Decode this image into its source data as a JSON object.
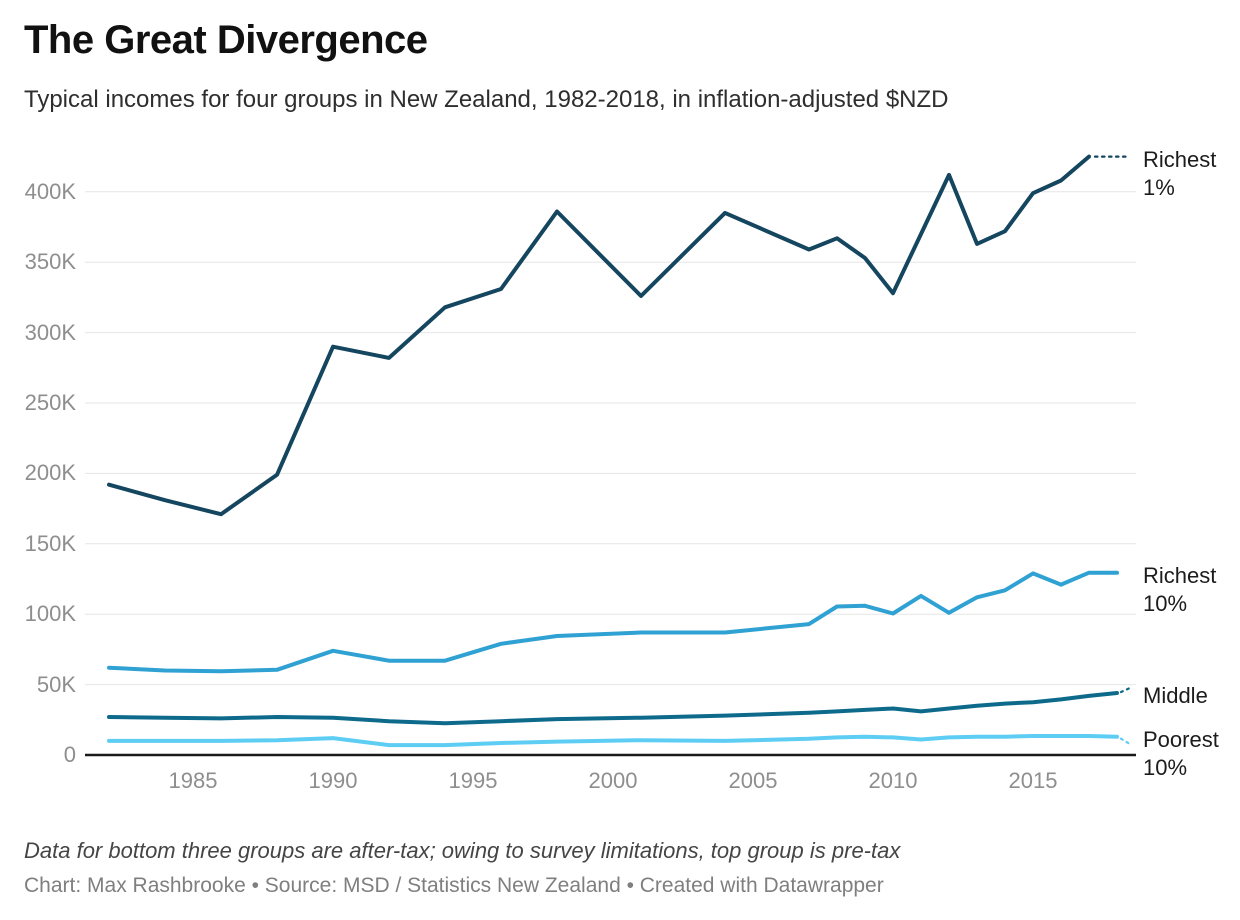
{
  "chart_data": {
    "type": "line",
    "title": "The Great Divergence",
    "subtitle": "Typical incomes for four groups in New Zealand, 1982-2018, in inflation-adjusted $NZD",
    "value_unit": "thousand NZD",
    "x_range": [
      1982,
      2018
    ],
    "ylim": [
      0,
      430
    ],
    "grid": "horizontal",
    "legend_position": "right-edge-labels",
    "yticks": [
      {
        "v": 0,
        "label": "0"
      },
      {
        "v": 50,
        "label": "50K"
      },
      {
        "v": 100,
        "label": "100K"
      },
      {
        "v": 150,
        "label": "150K"
      },
      {
        "v": 200,
        "label": "200K"
      },
      {
        "v": 250,
        "label": "250K"
      },
      {
        "v": 300,
        "label": "300K"
      },
      {
        "v": 350,
        "label": "350K"
      },
      {
        "v": 400,
        "label": "400K"
      }
    ],
    "xticks": [
      "1985",
      "1990",
      "1995",
      "2000",
      "2005",
      "2010",
      "2015"
    ],
    "colors": {
      "axis": "#1a1a1a",
      "grid": "#e6e6e6",
      "ticks": "#8e8e8e",
      "label_text": "#1c1c1c"
    },
    "series": [
      {
        "id": "richest1",
        "name": "Richest 1%",
        "label_lines": [
          "Richest",
          "1%"
        ],
        "color": "#15465f",
        "leader": "dotted-long",
        "points": [
          [
            1982,
            192
          ],
          [
            1984,
            181
          ],
          [
            1986,
            171
          ],
          [
            1988,
            199
          ],
          [
            1990,
            290
          ],
          [
            1992,
            282
          ],
          [
            1994,
            318
          ],
          [
            1996,
            331
          ],
          [
            1998,
            386
          ],
          [
            2001,
            326
          ],
          [
            2004,
            385
          ],
          [
            2007,
            359
          ],
          [
            2008,
            367
          ],
          [
            2009,
            353
          ],
          [
            2010,
            328
          ],
          [
            2011,
            370
          ],
          [
            2012,
            412
          ],
          [
            2013,
            363
          ],
          [
            2014,
            372
          ],
          [
            2015,
            399
          ],
          [
            2016,
            408
          ],
          [
            2017,
            425
          ]
        ]
      },
      {
        "id": "richest10",
        "name": "Richest 10%",
        "label_lines": [
          "Richest",
          "10%"
        ],
        "color": "#2fa1d2",
        "leader": "none",
        "points": [
          [
            1982,
            62
          ],
          [
            1984,
            60
          ],
          [
            1986,
            59.5
          ],
          [
            1988,
            60.5
          ],
          [
            1990,
            74
          ],
          [
            1992,
            67
          ],
          [
            1994,
            67
          ],
          [
            1996,
            79
          ],
          [
            1998,
            84.5
          ],
          [
            2001,
            87
          ],
          [
            2004,
            87
          ],
          [
            2007,
            93
          ],
          [
            2008,
            105.5
          ],
          [
            2009,
            106
          ],
          [
            2010,
            100.5
          ],
          [
            2011,
            113
          ],
          [
            2012,
            101
          ],
          [
            2013,
            112
          ],
          [
            2014,
            117
          ],
          [
            2015,
            129
          ],
          [
            2016,
            121
          ],
          [
            2017,
            129.5
          ],
          [
            2018,
            129.5
          ]
        ]
      },
      {
        "id": "middle",
        "name": "Middle",
        "label_lines": [
          "Middle"
        ],
        "color": "#0d6a8b",
        "leader": "dotted-up",
        "points": [
          [
            1982,
            27
          ],
          [
            1984,
            26.5
          ],
          [
            1986,
            26
          ],
          [
            1988,
            27
          ],
          [
            1990,
            26.5
          ],
          [
            1992,
            24
          ],
          [
            1994,
            22.5
          ],
          [
            1996,
            24
          ],
          [
            1998,
            25.5
          ],
          [
            2001,
            26.5
          ],
          [
            2004,
            28
          ],
          [
            2007,
            30
          ],
          [
            2008,
            31
          ],
          [
            2009,
            32
          ],
          [
            2010,
            33
          ],
          [
            2011,
            31
          ],
          [
            2012,
            33
          ],
          [
            2013,
            35
          ],
          [
            2014,
            36.5
          ],
          [
            2015,
            37.5
          ],
          [
            2016,
            39.5
          ],
          [
            2017,
            42
          ],
          [
            2018,
            44
          ]
        ]
      },
      {
        "id": "poorest",
        "name": "Poorest 10%",
        "label_lines": [
          "Poorest",
          "10%"
        ],
        "color": "#5ecdf4",
        "leader": "dotted-down",
        "points": [
          [
            1982,
            10
          ],
          [
            1984,
            10
          ],
          [
            1986,
            10
          ],
          [
            1988,
            10.5
          ],
          [
            1990,
            12
          ],
          [
            1992,
            7
          ],
          [
            1994,
            7
          ],
          [
            1996,
            8.5
          ],
          [
            1998,
            9.5
          ],
          [
            2001,
            10.5
          ],
          [
            2004,
            10
          ],
          [
            2007,
            11.5
          ],
          [
            2008,
            12.5
          ],
          [
            2009,
            13
          ],
          [
            2010,
            12.5
          ],
          [
            2011,
            11
          ],
          [
            2012,
            12.5
          ],
          [
            2013,
            13
          ],
          [
            2014,
            13
          ],
          [
            2015,
            13.5
          ],
          [
            2016,
            13.5
          ],
          [
            2017,
            13.5
          ],
          [
            2018,
            13
          ]
        ]
      }
    ]
  },
  "footer": {
    "note": "Data for bottom three groups are after-tax; owing to survey limitations, top group is pre-tax",
    "credits": "Chart: Max Rashbrooke • Source: MSD / Statistics New Zealand • Created with Datawrapper"
  }
}
